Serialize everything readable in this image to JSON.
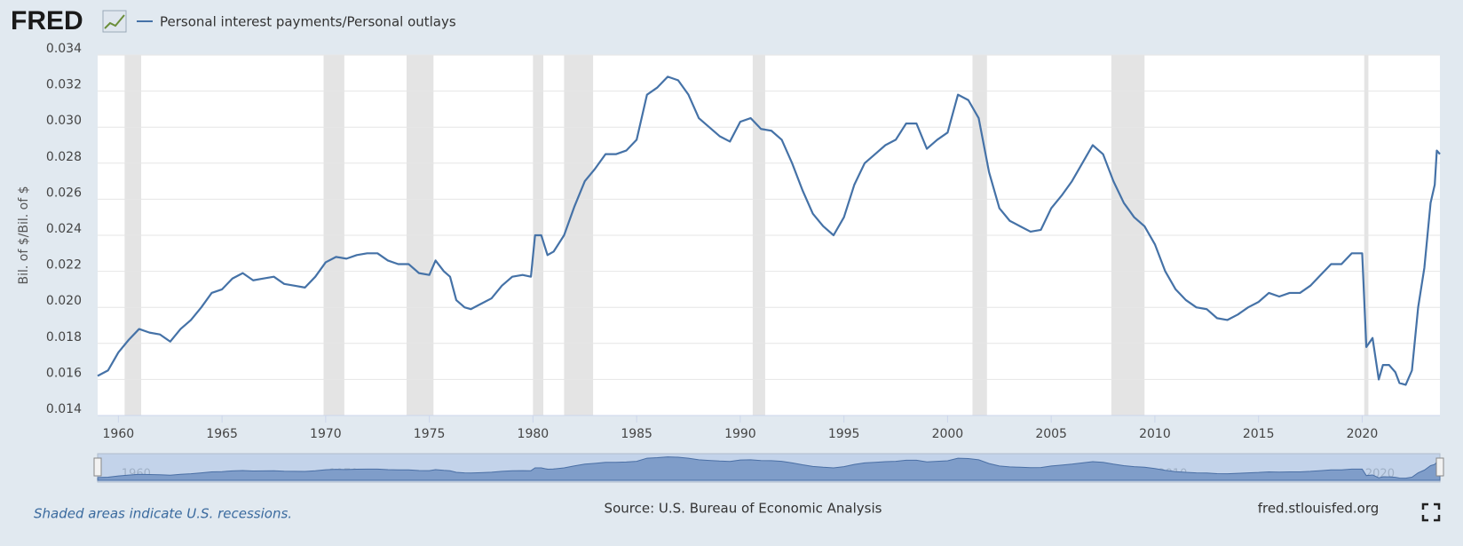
{
  "chart_data": {
    "type": "line",
    "logo": "FRED",
    "y_label": "Bil. of $/Bil. of $",
    "note": "Shaded areas indicate U.S. recessions.",
    "source": "Source: U.S. Bureau of Economic Analysis",
    "site": "fred.stlouisfed.org",
    "xlim": [
      1959,
      2023.75
    ],
    "ylim": [
      0.014,
      0.034
    ],
    "xticks": [
      1960,
      1965,
      1970,
      1975,
      1980,
      1985,
      1990,
      1995,
      2000,
      2005,
      2010,
      2015,
      2020
    ],
    "yticks": [
      0.014,
      0.016,
      0.018,
      {
        "value": 0.02,
        "label": "0.020"
      },
      0.022,
      0.024,
      0.026,
      0.028,
      {
        "value": 0.03,
        "label": "0.030"
      },
      0.032,
      0.034
    ],
    "grid": true,
    "recessions": [
      [
        1960.3,
        1961.1
      ],
      [
        1969.9,
        1970.9
      ],
      [
        1973.9,
        1975.2
      ],
      [
        1980.0,
        1980.5
      ],
      [
        1981.5,
        1982.9
      ],
      [
        1990.6,
        1991.2
      ],
      [
        2001.2,
        2001.9
      ],
      [
        2007.9,
        2009.5
      ],
      [
        2020.1,
        2020.3
      ]
    ],
    "x": [
      1959.0,
      1959.5,
      1960.0,
      1960.5,
      1961.0,
      1961.5,
      1962.0,
      1962.5,
      1963.0,
      1963.5,
      1964.0,
      1964.5,
      1965.0,
      1965.5,
      1966.0,
      1966.5,
      1967.0,
      1967.5,
      1968.0,
      1968.5,
      1969.0,
      1969.5,
      1970.0,
      1970.5,
      1971.0,
      1971.5,
      1972.0,
      1972.5,
      1973.0,
      1973.5,
      1974.0,
      1974.5,
      1975.0,
      1975.3,
      1975.7,
      1976.0,
      1976.3,
      1976.7,
      1977.0,
      1977.5,
      1978.0,
      1978.5,
      1979.0,
      1979.5,
      1979.9,
      1980.1,
      1980.4,
      1980.7,
      1981.0,
      1981.5,
      1982.0,
      1982.5,
      1983.0,
      1983.5,
      1984.0,
      1984.5,
      1985.0,
      1985.5,
      1986.0,
      1986.5,
      1987.0,
      1987.5,
      1988.0,
      1988.5,
      1989.0,
      1989.5,
      1990.0,
      1990.5,
      1991.0,
      1991.5,
      1992.0,
      1992.5,
      1993.0,
      1993.5,
      1994.0,
      1994.5,
      1995.0,
      1995.5,
      1996.0,
      1996.5,
      1997.0,
      1997.5,
      1998.0,
      1998.5,
      1999.0,
      1999.5,
      2000.0,
      2000.5,
      2001.0,
      2001.5,
      2002.0,
      2002.5,
      2003.0,
      2003.5,
      2004.0,
      2004.5,
      2005.0,
      2005.5,
      2006.0,
      2006.5,
      2007.0,
      2007.5,
      2008.0,
      2008.5,
      2009.0,
      2009.5,
      2010.0,
      2010.5,
      2011.0,
      2011.5,
      2012.0,
      2012.5,
      2013.0,
      2013.5,
      2014.0,
      2014.5,
      2015.0,
      2015.5,
      2016.0,
      2016.5,
      2017.0,
      2017.5,
      2018.0,
      2018.5,
      2019.0,
      2019.5,
      2020.0,
      2020.2,
      2020.5,
      2020.8,
      2021.0,
      2021.3,
      2021.6,
      2021.8,
      2022.1,
      2022.4,
      2022.7,
      2023.0,
      2023.3,
      2023.5,
      2023.6,
      2023.75
    ],
    "series": [
      {
        "name": "Personal interest payments/Personal outlays",
        "color": "#4572a7",
        "values": [
          0.0162,
          0.0165,
          0.0175,
          0.0182,
          0.0188,
          0.0186,
          0.0185,
          0.0181,
          0.0188,
          0.0193,
          0.02,
          0.0208,
          0.021,
          0.0216,
          0.0219,
          0.0215,
          0.0216,
          0.0217,
          0.0213,
          0.0212,
          0.0211,
          0.0217,
          0.0225,
          0.0228,
          0.0227,
          0.0229,
          0.023,
          0.023,
          0.0226,
          0.0224,
          0.0224,
          0.0219,
          0.0218,
          0.0226,
          0.022,
          0.0217,
          0.0204,
          0.02,
          0.0199,
          0.0202,
          0.0205,
          0.0212,
          0.0217,
          0.0218,
          0.0217,
          0.024,
          0.024,
          0.0229,
          0.0231,
          0.024,
          0.0256,
          0.027,
          0.0277,
          0.0285,
          0.0285,
          0.0287,
          0.0293,
          0.0318,
          0.0322,
          0.0328,
          0.0326,
          0.0318,
          0.0305,
          0.03,
          0.0295,
          0.0292,
          0.0303,
          0.0305,
          0.0299,
          0.0298,
          0.0293,
          0.028,
          0.0265,
          0.0252,
          0.0245,
          0.024,
          0.025,
          0.0268,
          0.028,
          0.0285,
          0.029,
          0.0293,
          0.0302,
          0.0302,
          0.0288,
          0.0293,
          0.0297,
          0.0318,
          0.0315,
          0.0305,
          0.0275,
          0.0255,
          0.0248,
          0.0245,
          0.0242,
          0.0243,
          0.0255,
          0.0262,
          0.027,
          0.028,
          0.029,
          0.0285,
          0.027,
          0.0258,
          0.025,
          0.0245,
          0.0235,
          0.022,
          0.021,
          0.0204,
          0.02,
          0.0199,
          0.0194,
          0.0193,
          0.0196,
          0.02,
          0.0203,
          0.0208,
          0.0206,
          0.0208,
          0.0208,
          0.0212,
          0.0218,
          0.0224,
          0.0224,
          0.023,
          0.023,
          0.0178,
          0.0183,
          0.016,
          0.0168,
          0.0168,
          0.0164,
          0.0158,
          0.0157,
          0.0165,
          0.02,
          0.0222,
          0.0258,
          0.0268,
          0.0287,
          0.0285
        ]
      }
    ]
  }
}
